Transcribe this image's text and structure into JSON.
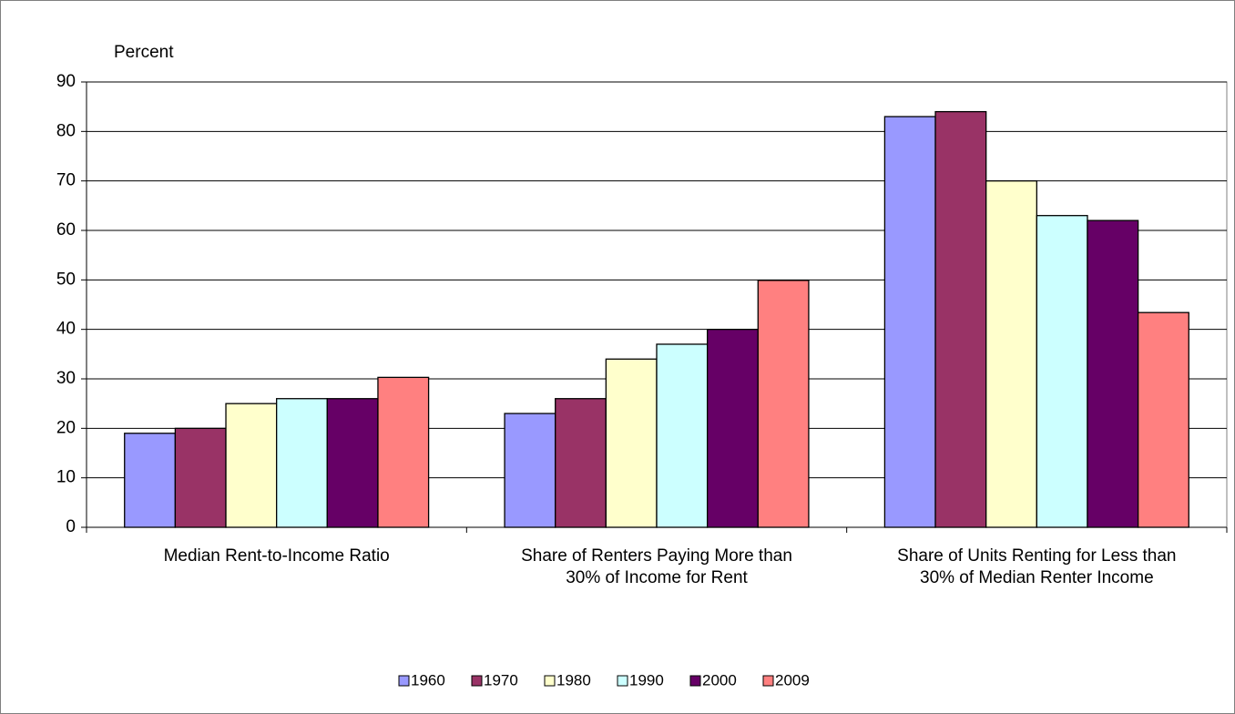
{
  "chart_data": {
    "type": "bar",
    "y_axis_label": "Percent",
    "categories": [
      "Median Rent-to-Income Ratio",
      "Share of Renters Paying More than 30% of Income for Rent",
      "Share of Units Renting for Less than 30% of Median Renter Income"
    ],
    "series": [
      {
        "name": "1960",
        "color": "#9999ff",
        "values": [
          19,
          23,
          83
        ]
      },
      {
        "name": "1970",
        "color": "#993366",
        "values": [
          20,
          26,
          84
        ]
      },
      {
        "name": "1980",
        "color": "#ffffcc",
        "values": [
          25,
          34,
          70
        ]
      },
      {
        "name": "1990",
        "color": "#ccffff",
        "values": [
          26,
          37,
          63
        ]
      },
      {
        "name": "2000",
        "color": "#660066",
        "values": [
          26,
          40,
          62
        ]
      },
      {
        "name": "2009",
        "color": "#ff8080",
        "values": [
          30.3,
          49.9,
          43.4
        ]
      }
    ],
    "ylim": [
      0,
      90
    ],
    "yticks": [
      0,
      10,
      20,
      30,
      40,
      50,
      60,
      70,
      80,
      90
    ],
    "grid": true,
    "legend": "bottom"
  }
}
